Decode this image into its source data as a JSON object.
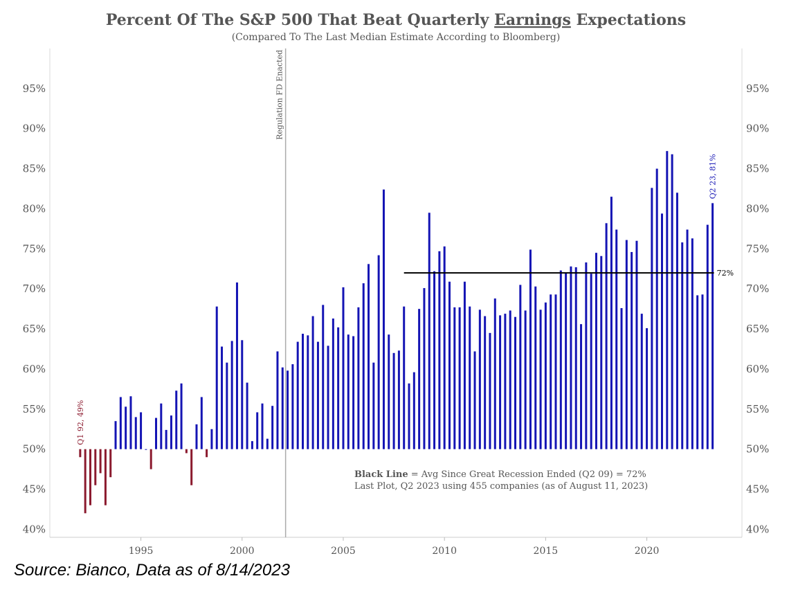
{
  "chart_data": {
    "type": "bar",
    "title_parts": [
      "Percent Of The S&P 500 That Beat Quarterly ",
      "Earnings",
      " Expectations"
    ],
    "subtitle": "(Compared To The Last Median Estimate According to Bloomberg)",
    "baseline": 50,
    "ylim": [
      39,
      100
    ],
    "xlim": [
      1990.5,
      2024.7
    ],
    "y_ticks": [
      40,
      45,
      50,
      55,
      60,
      65,
      70,
      75,
      80,
      85,
      90,
      95
    ],
    "y_tick_labels": [
      "40%",
      "45%",
      "50%",
      "55%",
      "60%",
      "65%",
      "70%",
      "75%",
      "80%",
      "85%",
      "90%",
      "95%"
    ],
    "x_ticks": [
      1995,
      2000,
      2005,
      2010,
      2015,
      2020
    ],
    "x_tick_labels": [
      "1995",
      "2000",
      "2005",
      "2010",
      "2015",
      "2020"
    ],
    "start_year": 1992,
    "values": [
      49,
      42,
      43,
      45.5,
      47,
      43,
      46.5,
      53.5,
      56.5,
      55.3,
      56.6,
      54,
      54.6,
      50,
      47.5,
      53.9,
      55.7,
      52.4,
      54.2,
      57.3,
      58.2,
      49.5,
      45.5,
      53.1,
      56.5,
      49,
      52.5,
      67.8,
      62.8,
      60.8,
      63.5,
      70.8,
      63.6,
      58.3,
      51,
      54.6,
      55.7,
      51.3,
      55.4,
      62.2,
      60.2,
      59.8,
      60.6,
      63.4,
      64.4,
      64.2,
      66.6,
      63.4,
      68,
      62.9,
      66.3,
      65.2,
      70.2,
      64.3,
      64.1,
      67.7,
      70.7,
      73.1,
      60.8,
      74.2,
      82.4,
      64.3,
      62,
      62.3,
      67.8,
      58.2,
      59.6,
      67.5,
      70.1,
      79.5,
      72.2,
      74.7,
      75.3,
      70.9,
      67.7,
      67.7,
      70.9,
      67.8,
      62.2,
      67.4,
      66.6,
      64.5,
      68.8,
      66.7,
      66.9,
      67.3,
      66.5,
      70.5,
      67.3,
      74.9,
      70.3,
      67.4,
      68.3,
      69.3,
      69.3,
      72.3,
      72,
      72.8,
      72.7,
      65.6,
      73.3,
      71.9,
      74.5,
      74.1,
      78.2,
      81.5,
      77.4,
      67.6,
      76.1,
      74.6,
      76,
      66.9,
      65.1,
      82.6,
      85,
      79.4,
      87.2,
      86.8,
      82,
      75.8,
      77.4,
      76.3,
      69.2,
      69.3,
      78,
      80.7
    ],
    "highlight_color": "#1414b4",
    "negative_color": "#8b1a2e",
    "avg_line": {
      "value": 72,
      "from_quarter": 64,
      "label": "72%",
      "color": "#000000"
    },
    "vline": {
      "x": 2002.15,
      "label": "Regulation FD Enacted",
      "color": "#aaaaaa"
    },
    "annotations": [
      {
        "text": "Q1 92, 49%",
        "quarter_index": 0,
        "color": "#8b1a2e"
      },
      {
        "text": "Q2 23, 81%",
        "quarter_index": 125,
        "color": "#1414b4"
      }
    ],
    "note_bold": "Black Line",
    "note_line1": " = Avg Since Great Recession Ended (Q2 09) = 72%",
    "note_line2": "Last Plot, Q2 2023 using 455 companies (as of August 11, 2023)"
  },
  "source": "Source: Bianco, Data as of 8/14/2023"
}
